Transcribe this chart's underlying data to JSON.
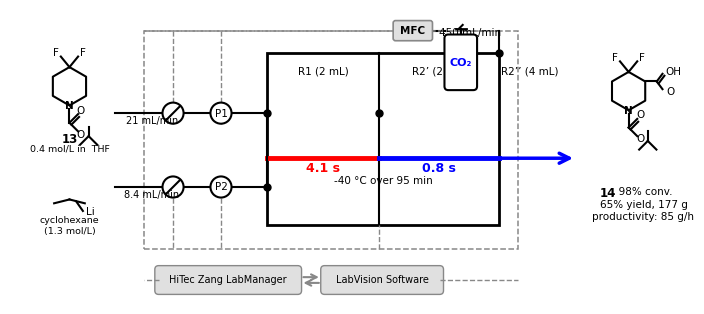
{
  "bg_color": "#ffffff",
  "figsize": [
    7.0,
    3.07
  ],
  "dpi": 100,
  "black": "#000000",
  "red": "#ff0000",
  "blue": "#0000ff",
  "gray": "#888888",
  "box_gray": "#e0e0e0",
  "software_left": "HiTec Zang LabManager",
  "software_right": "LabVision Software",
  "flow_rate_upper": "21 mL/min",
  "flow_rate_lower": "8.4 mL/min",
  "flow_rate_co2": "450 mL/min",
  "r1_label": "R1 (2 mL)",
  "r2p_label": "R2’ (2 mL)",
  "r2pp_label": "R2’’ (4 mL)",
  "time_r1": "4.1 s",
  "time_r2": "0.8 s",
  "condition": "-40 °C over 95 min",
  "mfc_label": "MFC",
  "co2_label": "CO₂",
  "label13": "13",
  "label13_sub": "0.4 mol/L in  THF",
  "label_li": "cyclohexane\n(1.3 mol/L)",
  "label14": "14",
  "label14_conv": ", 98% conv.",
  "label14_yield": "65% yield, 177 g",
  "label14_prod": "productivity: 85 g/h"
}
